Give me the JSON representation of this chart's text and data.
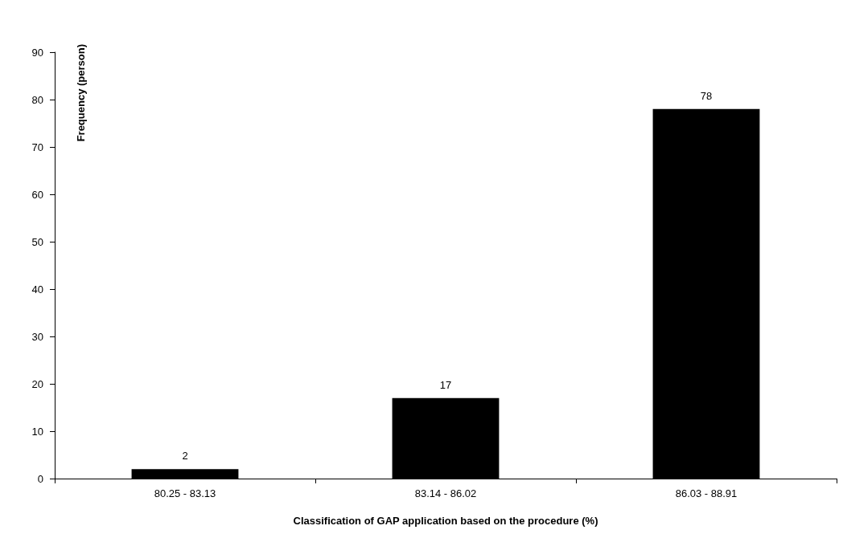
{
  "chart_data": {
    "type": "bar",
    "xlabel": "Classification of GAP application based on the procedure (%)",
    "ylabel": "Frequency (person)",
    "categories": [
      "80.25 - 83.13",
      "83.14 - 86.02",
      "86.03 - 88.91"
    ],
    "values": [
      2,
      17,
      78
    ],
    "color": "#000000",
    "ylim": [
      0,
      90
    ],
    "yticks": [
      0,
      10,
      20,
      30,
      40,
      50,
      60,
      70,
      80,
      90
    ],
    "grid": false,
    "data_labels": true
  }
}
